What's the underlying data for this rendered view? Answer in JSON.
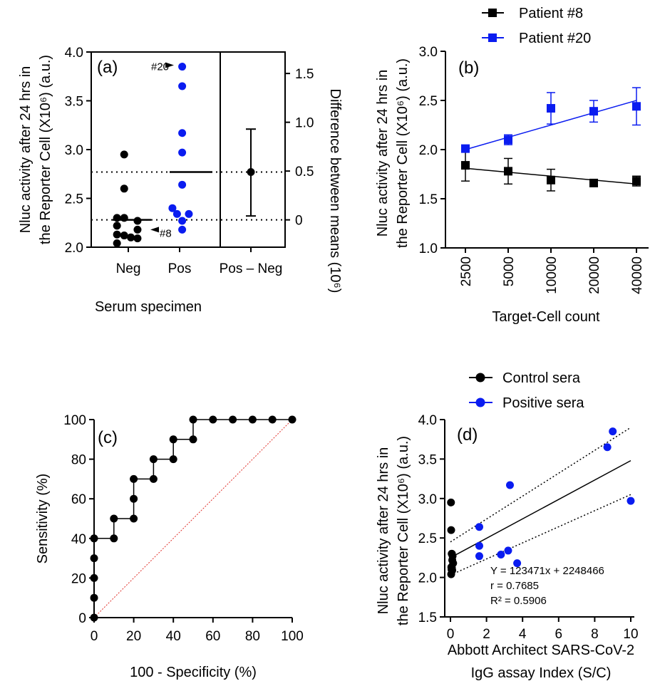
{
  "colors": {
    "black": "#000000",
    "blue": "#0a1cf0",
    "diag": "#e0302a"
  },
  "chart_data": [
    {
      "panel": "(a)",
      "type": "scatter",
      "ylabel_line1": "Nluc activity after 24 hrs  in",
      "ylabel_line2": "the Reporter Cell (X10⁶) (a.u.)",
      "y2label": "Difference between means (10⁶)",
      "xlabel": "Serum specimen",
      "categories": [
        "Neg",
        "Pos",
        "Pos – Neg"
      ],
      "ylim": [
        2.0,
        4.0
      ],
      "yticks": [
        "2.0",
        "2.5",
        "3.0",
        "3.5",
        "4.0"
      ],
      "y2ticks": [
        "0",
        "0.5",
        "1.0",
        "1.5"
      ],
      "neg_points": [
        [
          -0.08,
          2.95
        ],
        [
          -0.08,
          2.6
        ],
        [
          -0.08,
          2.3
        ],
        [
          -0.22,
          2.22
        ],
        [
          -0.22,
          2.13
        ],
        [
          -0.08,
          2.12
        ],
        [
          0.05,
          2.1
        ],
        [
          0.18,
          2.27
        ],
        [
          0.18,
          2.18
        ],
        [
          0.18,
          2.09
        ],
        [
          -0.22,
          2.04
        ],
        [
          -0.22,
          2.3
        ]
      ],
      "pos_points": [
        [
          0.05,
          3.85
        ],
        [
          0.05,
          3.65
        ],
        [
          0.05,
          3.17
        ],
        [
          0.05,
          2.97
        ],
        [
          0.05,
          2.64
        ],
        [
          -0.14,
          2.4
        ],
        [
          0.18,
          2.34
        ],
        [
          -0.05,
          2.34
        ],
        [
          0.05,
          2.27
        ],
        [
          0.05,
          2.18
        ]
      ],
      "neg_mean": 2.28,
      "pos_mean": 2.77,
      "diff_mean": 0.49,
      "diff_ci": [
        0.04,
        0.93
      ],
      "annotations": [
        "#20",
        "#8"
      ]
    },
    {
      "panel": "(b)",
      "type": "line",
      "ylabel_line1": "Nluc activity after 24 hrs  in",
      "ylabel_line2": "the Reporter Cell (X10⁶) (a.u.)",
      "xlabel": "Target-Cell count",
      "categories": [
        "2500",
        "5000",
        "10000",
        "20000",
        "40000"
      ],
      "ylim": [
        1.0,
        3.0
      ],
      "yticks": [
        "1.0",
        "1.5",
        "2.0",
        "2.5",
        "3.0"
      ],
      "series": [
        {
          "name": "Patient #8",
          "values": [
            1.84,
            1.78,
            1.69,
            1.66,
            1.68
          ],
          "err": [
            0.16,
            0.13,
            0.11,
            0.02,
            0.05
          ],
          "fit": [
            1.81,
            1.65
          ]
        },
        {
          "name": "Patient #20",
          "values": [
            2.01,
            2.1,
            2.42,
            2.39,
            2.44
          ],
          "err": [
            0.03,
            0.05,
            0.16,
            0.11,
            0.19
          ],
          "fit": [
            2.0,
            2.5
          ]
        }
      ]
    },
    {
      "panel": "(c)",
      "type": "line",
      "ylabel": "Sensitivity (%)",
      "xlabel": "100 - Specificity (%)",
      "xlim": [
        0,
        100
      ],
      "ylim": [
        0,
        100
      ],
      "xticks": [
        "0",
        "20",
        "40",
        "60",
        "80",
        "100"
      ],
      "yticks": [
        "0",
        "20",
        "40",
        "60",
        "80",
        "100"
      ],
      "roc": [
        [
          0,
          0
        ],
        [
          0,
          10
        ],
        [
          0,
          20
        ],
        [
          0,
          30
        ],
        [
          0,
          40
        ],
        [
          10,
          40
        ],
        [
          10,
          50
        ],
        [
          20,
          50
        ],
        [
          20,
          60
        ],
        [
          20,
          70
        ],
        [
          30,
          70
        ],
        [
          30,
          80
        ],
        [
          40,
          80
        ],
        [
          40,
          90
        ],
        [
          50,
          90
        ],
        [
          50,
          100
        ],
        [
          60,
          100
        ],
        [
          70,
          100
        ],
        [
          80,
          100
        ],
        [
          90,
          100
        ],
        [
          100,
          100
        ]
      ]
    },
    {
      "panel": "(d)",
      "type": "scatter",
      "ylabel_line1": "Nluc activity after 24 hrs  in",
      "ylabel_line2": "the Reporter Cell (X10⁶) (a.u.)",
      "xlabel_line1": "Abbott Architect SARS-CoV-2",
      "xlabel_line2": "IgG assay Index (S/C)",
      "xlim": [
        0,
        10
      ],
      "ylim": [
        1.5,
        4.0
      ],
      "xticks": [
        "0",
        "2",
        "4",
        "6",
        "8",
        "10"
      ],
      "yticks": [
        "1.5",
        "2.0",
        "2.5",
        "3.0",
        "3.5",
        "4.0"
      ],
      "series": [
        {
          "name": "Control sera",
          "points": [
            [
              0.03,
              2.95
            ],
            [
              0.04,
              2.6
            ],
            [
              0.07,
              2.3
            ],
            [
              0.1,
              2.22
            ],
            [
              0.05,
              2.13
            ],
            [
              0.08,
              2.12
            ],
            [
              0.06,
              2.1
            ],
            [
              0.12,
              2.27
            ],
            [
              0.15,
              2.18
            ],
            [
              0.1,
              2.09
            ],
            [
              0.04,
              2.04
            ],
            [
              0.08,
              2.3
            ]
          ]
        },
        {
          "name": "Positive sera",
          "points": [
            [
              9.0,
              3.85
            ],
            [
              8.7,
              3.65
            ],
            [
              3.3,
              3.17
            ],
            [
              10.0,
              2.97
            ],
            [
              1.6,
              2.64
            ],
            [
              1.6,
              2.4
            ],
            [
              3.2,
              2.34
            ],
            [
              2.8,
              2.29
            ],
            [
              1.6,
              2.27
            ],
            [
              3.7,
              2.18
            ]
          ]
        }
      ],
      "fit": {
        "x": [
          0,
          10
        ],
        "y": [
          2.25,
          3.48
        ]
      },
      "ci_upper": {
        "x": [
          0,
          10
        ],
        "y": [
          2.45,
          3.9
        ]
      },
      "ci_lower": {
        "x": [
          0,
          10
        ],
        "y": [
          2.03,
          3.05
        ]
      },
      "equation": [
        "Y = 123471x + 2248466",
        "r = 0.7685",
        "R² = 0.5906"
      ]
    }
  ]
}
